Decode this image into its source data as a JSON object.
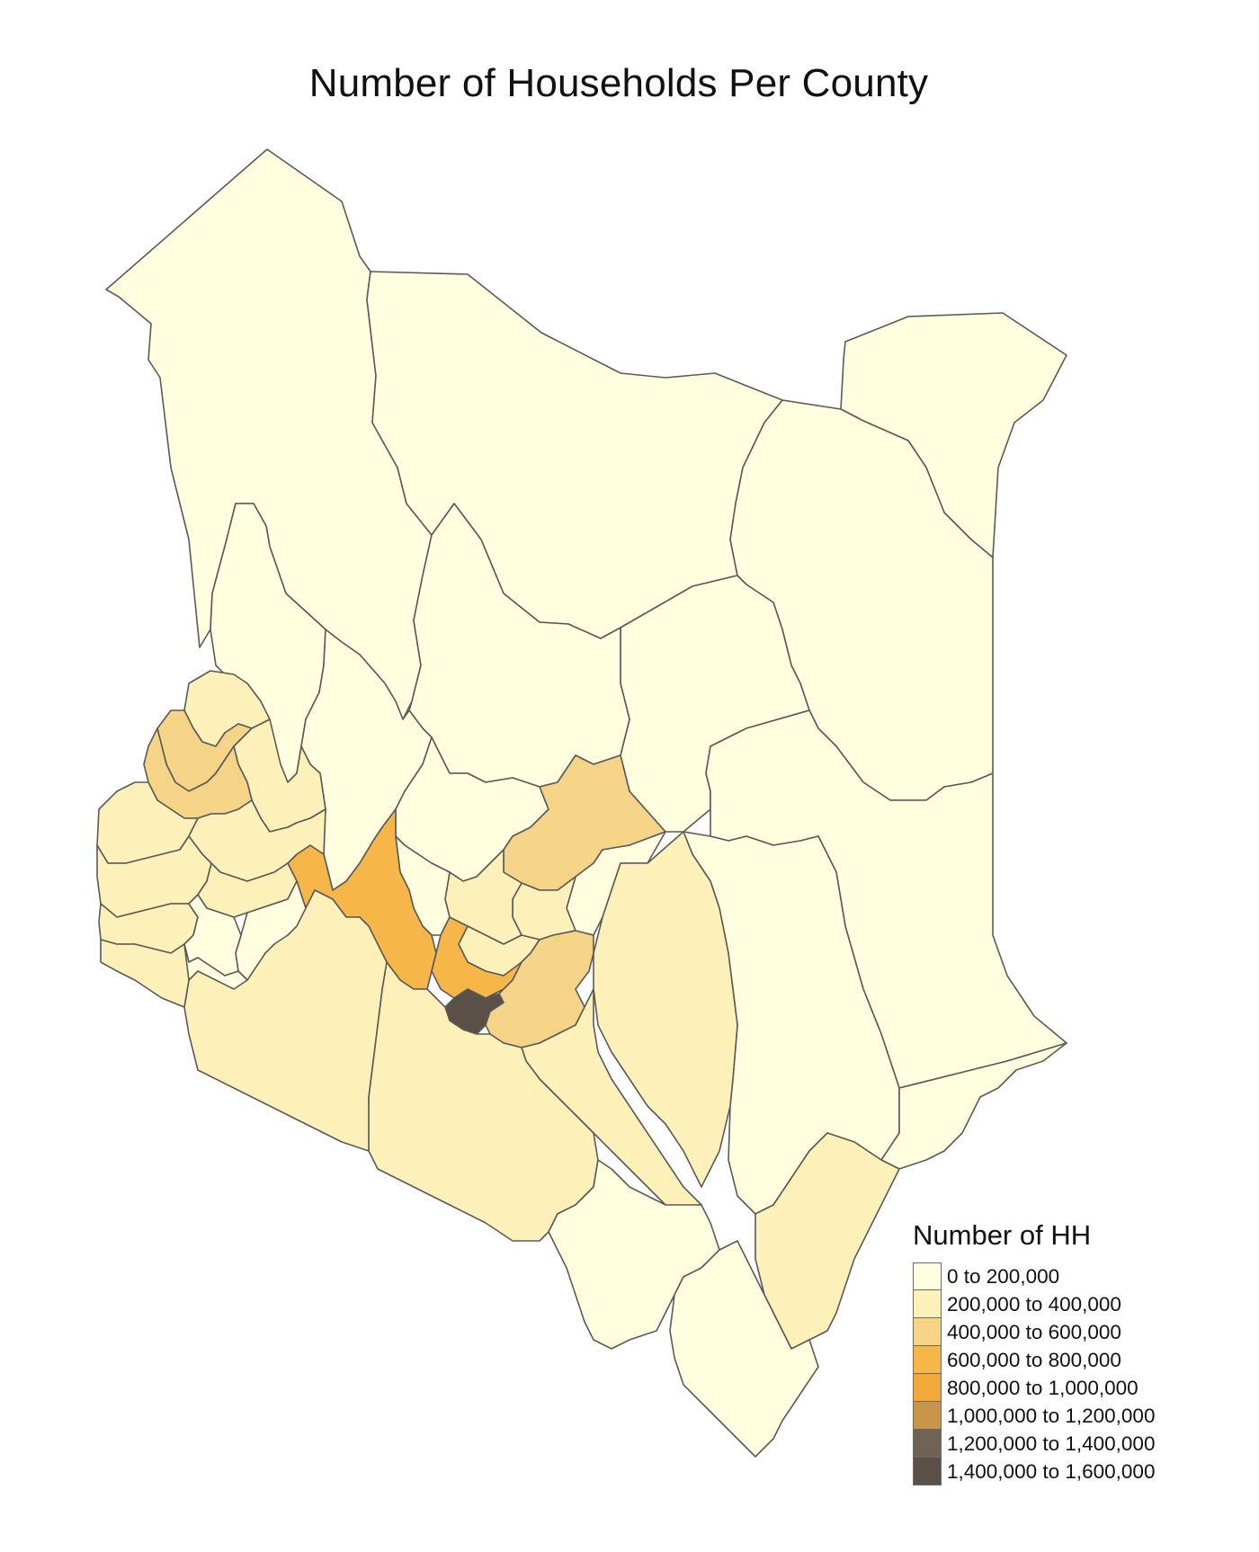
{
  "title": "Number of Households Per County",
  "legend": {
    "title": "Number of HH",
    "classes": [
      {
        "label": "0 to 200,000",
        "color": "#ffffe0"
      },
      {
        "label": "200,000 to 400,000",
        "color": "#fdf0b8"
      },
      {
        "label": "400,000 to 600,000",
        "color": "#f6d487"
      },
      {
        "label": "600,000 to 800,000",
        "color": "#f7b648"
      },
      {
        "label": "800,000 to 1,000,000",
        "color": "#f0a838"
      },
      {
        "label": "1,000,000 to 1,200,000",
        "color": "#c9954a"
      },
      {
        "label": "1,200,000 to 1,400,000",
        "color": "#6e6354"
      },
      {
        "label": "1,400,000 to 1,600,000",
        "color": "#5a5047"
      }
    ]
  },
  "border_color": "#5a5a5a"
}
